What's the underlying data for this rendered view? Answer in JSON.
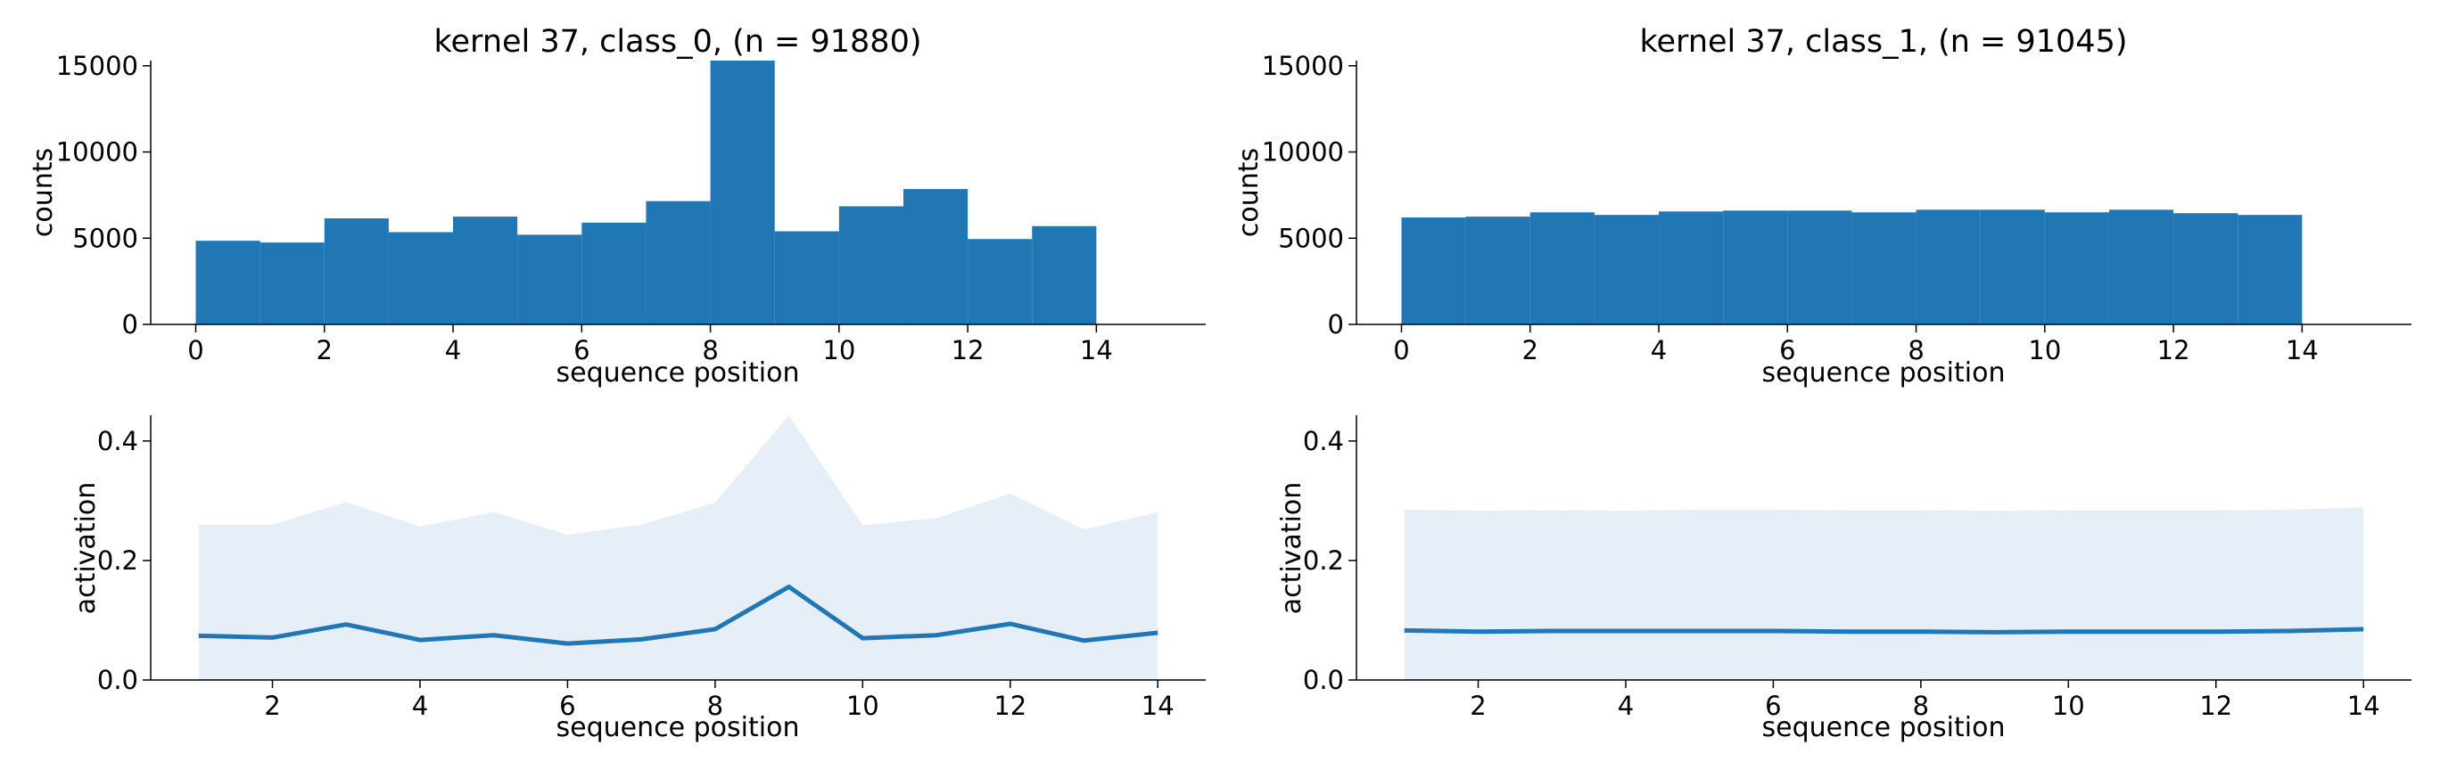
{
  "colors": {
    "bar": "#2077b4",
    "line": "#2077b4",
    "band": "#e6eff8"
  },
  "chart_data": [
    {
      "type": "bar",
      "title": "kernel 37, class_0, (n = 91880)",
      "xlabel": "sequence position",
      "ylabel": "counts",
      "bin_edges": [
        0,
        1,
        2,
        3,
        4,
        5,
        6,
        7,
        8,
        9,
        10,
        11,
        12,
        13,
        14
      ],
      "values": [
        4850,
        4750,
        6150,
        5350,
        6250,
        5200,
        5900,
        7150,
        15300,
        5400,
        6850,
        7850,
        4950,
        5700
      ],
      "xlim": [
        -0.7,
        15.7
      ],
      "ylim": [
        0,
        15300
      ],
      "xticks": [
        "0",
        "2",
        "4",
        "6",
        "8",
        "10",
        "12",
        "14"
      ],
      "yticks": [
        "0",
        "5000",
        "10000",
        "15000"
      ]
    },
    {
      "type": "bar",
      "title": "kernel 37, class_1, (n = 91045)",
      "xlabel": "sequence position",
      "ylabel": "counts",
      "bin_edges": [
        0,
        1,
        2,
        3,
        4,
        5,
        6,
        7,
        8,
        9,
        10,
        11,
        12,
        13,
        14
      ],
      "values": [
        6200,
        6250,
        6500,
        6350,
        6550,
        6600,
        6600,
        6500,
        6650,
        6650,
        6500,
        6650,
        6450,
        6350
      ],
      "xlim": [
        -0.7,
        15.7
      ],
      "ylim": [
        0,
        15300
      ],
      "xticks": [
        "0",
        "2",
        "4",
        "6",
        "8",
        "10",
        "12",
        "14"
      ],
      "yticks": [
        "0",
        "5000",
        "10000",
        "15000"
      ]
    },
    {
      "type": "line",
      "xlabel": "sequence position",
      "ylabel": "activation",
      "x": [
        1,
        2,
        3,
        4,
        5,
        6,
        7,
        8,
        9,
        10,
        11,
        12,
        13,
        14
      ],
      "mean": [
        0.074,
        0.071,
        0.093,
        0.067,
        0.075,
        0.061,
        0.068,
        0.085,
        0.156,
        0.07,
        0.075,
        0.094,
        0.066,
        0.079
      ],
      "band_upper": [
        0.26,
        0.26,
        0.298,
        0.257,
        0.281,
        0.243,
        0.26,
        0.297,
        0.443,
        0.259,
        0.271,
        0.312,
        0.252,
        0.281
      ],
      "band_lower": [
        0,
        0,
        0,
        0,
        0,
        0,
        0,
        0,
        0,
        0,
        0,
        0,
        0,
        0
      ],
      "xlim": [
        0.35,
        14.65
      ],
      "ylim": [
        0,
        0.443
      ],
      "xticks": [
        "2",
        "4",
        "6",
        "8",
        "10",
        "12",
        "14"
      ],
      "yticks": [
        "0.0",
        "0.2",
        "0.4"
      ]
    },
    {
      "type": "line",
      "xlabel": "sequence position",
      "ylabel": "activation",
      "x": [
        1,
        2,
        3,
        4,
        5,
        6,
        7,
        8,
        9,
        10,
        11,
        12,
        13,
        14
      ],
      "mean": [
        0.083,
        0.081,
        0.082,
        0.082,
        0.082,
        0.082,
        0.081,
        0.081,
        0.08,
        0.081,
        0.081,
        0.081,
        0.082,
        0.085
      ],
      "band_upper": [
        0.285,
        0.283,
        0.284,
        0.283,
        0.285,
        0.285,
        0.284,
        0.284,
        0.283,
        0.284,
        0.284,
        0.284,
        0.285,
        0.289
      ],
      "band_lower": [
        0,
        0,
        0,
        0,
        0,
        0,
        0,
        0,
        0,
        0,
        0,
        0,
        0,
        0
      ],
      "xlim": [
        0.35,
        14.65
      ],
      "ylim": [
        0,
        0.443
      ],
      "xticks": [
        "2",
        "4",
        "6",
        "8",
        "10",
        "12",
        "14"
      ],
      "yticks": [
        "0.0",
        "0.2",
        "0.4"
      ]
    }
  ]
}
